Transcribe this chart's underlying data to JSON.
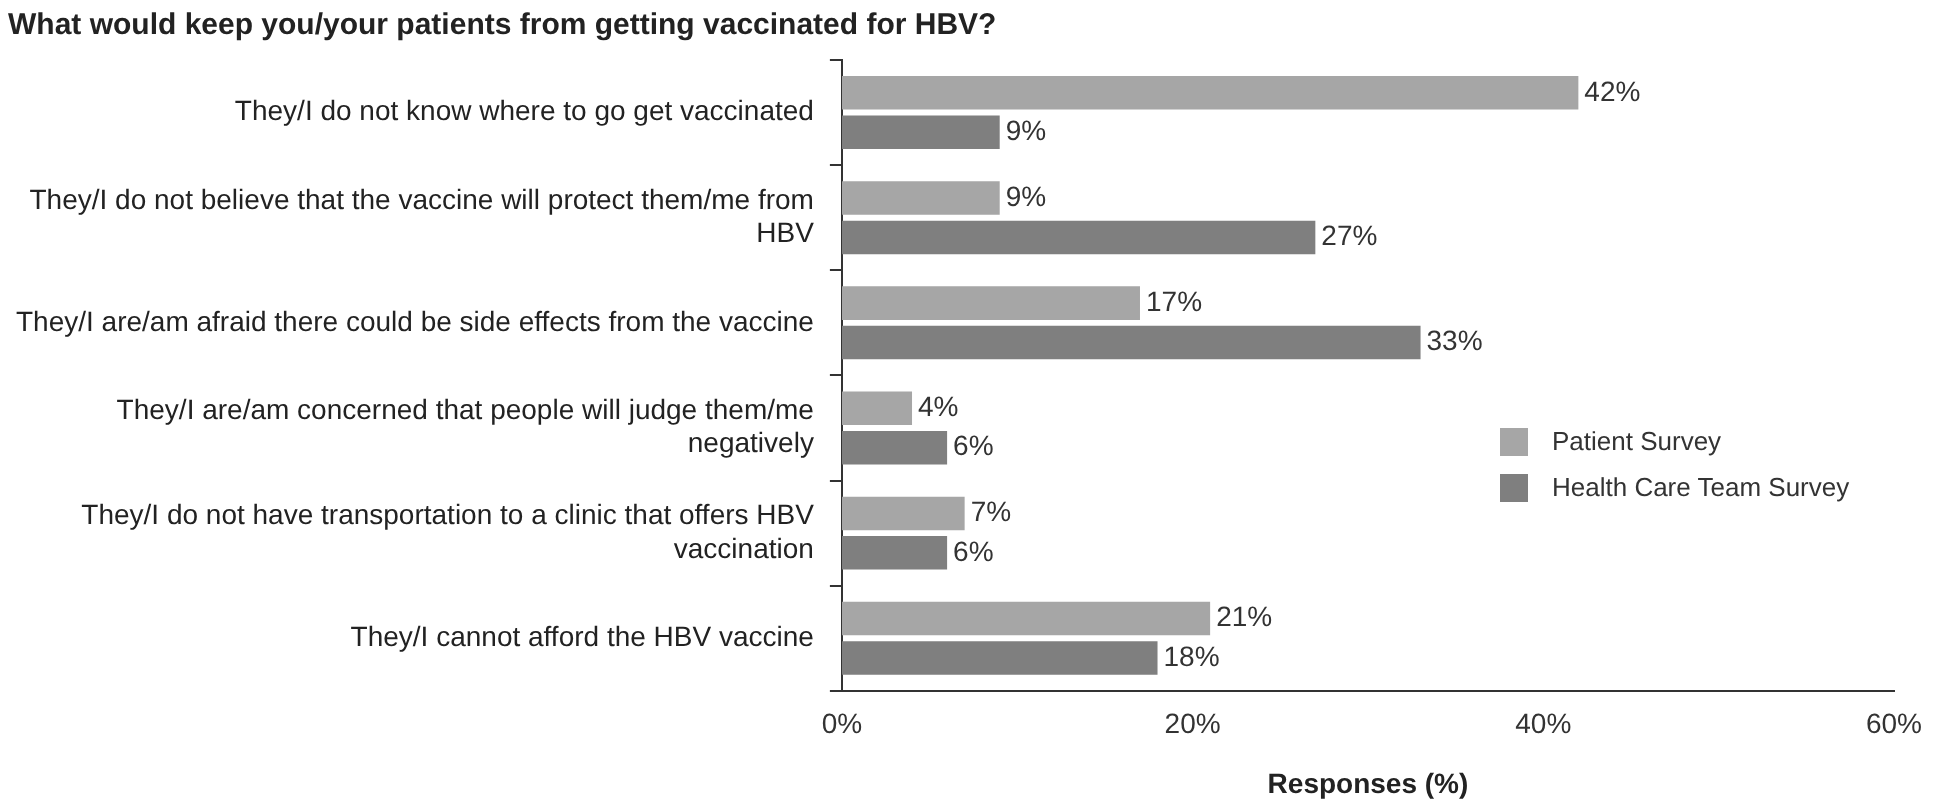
{
  "chart_data": {
    "type": "bar",
    "orientation": "horizontal",
    "title": "What would keep you/your patients from getting vaccinated for HBV?",
    "xlabel": "Responses (%)",
    "categories": [
      "They/I do not know where to go get vaccinated",
      "They/I do not believe that the vaccine will protect them/me from HBV",
      "They/I are/am afraid there could be side effects from the vaccine",
      "They/I are/am concerned that people will judge them/me negatively",
      "They/I do not have transportation to a clinic that offers HBV vaccination",
      "They/I cannot afford the HBV vaccine"
    ],
    "series": [
      {
        "name": "Patient Survey",
        "color": "#a6a6a6",
        "values": [
          42,
          9,
          17,
          4,
          7,
          21
        ],
        "value_labels": [
          "42%",
          "9%",
          "17%",
          "4%",
          "7%",
          "21%"
        ]
      },
      {
        "name": "Health Care Team Survey",
        "color": "#7f7f7f",
        "values": [
          9,
          27,
          33,
          6,
          6,
          18
        ],
        "value_labels": [
          "9%",
          "27%",
          "33%",
          "6%",
          "6%",
          "18%"
        ]
      }
    ],
    "xlim": [
      0,
      60
    ],
    "xticks": [
      {
        "value": 0,
        "label": "0%"
      },
      {
        "value": 20,
        "label": "20%"
      },
      {
        "value": 40,
        "label": "40%"
      },
      {
        "value": 60,
        "label": "60%"
      }
    ],
    "grid": false,
    "legend": "right"
  }
}
